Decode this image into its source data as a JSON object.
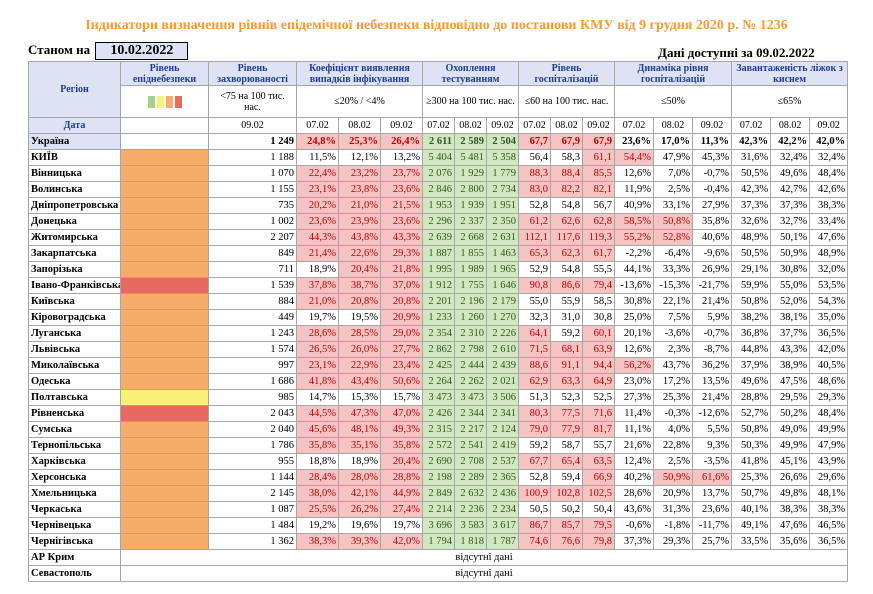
{
  "title": "Індикатори визначення рівнів епідемічної небезпеки відповідно до постанови КМУ від 9 грудня 2020 р. № 1236",
  "stanom_label": "Станом на",
  "stanom_date": "10.02.2022",
  "dani": "Дані доступні за 09.02.2022",
  "headers": {
    "region": "Регіон",
    "tsilovyi": "Цільовий показник",
    "data": "Дата",
    "riven_nebezpeky": "Рівень епіднебезпеки",
    "riven_zakhv": "Рівень захворюваності",
    "zakhv_target": "<75 на 100 тис. нас.",
    "koef": "Коефіцієнт виявлення випадків інфікування",
    "koef_target": "≤20% / <4%",
    "okhop": "Охоплення тестуванням",
    "okhop_target": "≥300 на 100 тис. нас.",
    "hosp": "Рівень госпіталізацій",
    "hosp_target": "≤60 на 100 тис. нас.",
    "dyn": "Динаміка рівня госпіталізацій",
    "dyn_target": "≤50%",
    "lizh": "Завантаженість ліжок з киснем",
    "lizh_target": "≤65%",
    "d0902": "09.02",
    "d0702": "07.02",
    "d0802": "08.02"
  },
  "legend_colors": [
    "#a8d08d",
    "#f8f276",
    "#f8ac6a",
    "#e8695f"
  ],
  "rows": [
    {
      "name": "Україна",
      "ind": "none",
      "z": "1 249",
      "k": [
        "24,8%",
        "25,3%",
        "26,4%"
      ],
      "kc": [
        "red",
        "red",
        "red"
      ],
      "o": [
        "2 611",
        "2 589",
        "2 504"
      ],
      "oc": [
        "green",
        "green",
        "green"
      ],
      "h": [
        "67,7",
        "67,9",
        "67,9"
      ],
      "hc": [
        "red",
        "red",
        "red"
      ],
      "d": [
        "23,6%",
        "17,0%",
        "11,3%"
      ],
      "dc": [
        "",
        "",
        ""
      ],
      "l": [
        "42,3%",
        "42,2%",
        "42,0%"
      ]
    },
    {
      "name": "КИЇВ",
      "ind": "orange",
      "z": "1 188",
      "k": [
        "11,5%",
        "12,1%",
        "13,2%"
      ],
      "kc": [
        "",
        "",
        ""
      ],
      "o": [
        "5 404",
        "5 481",
        "5 358"
      ],
      "oc": [
        "green",
        "green",
        "green"
      ],
      "h": [
        "56,4",
        "58,3",
        "61,1"
      ],
      "hc": [
        "",
        "",
        "red"
      ],
      "d": [
        "54,4%",
        "47,9%",
        "45,3%"
      ],
      "dc": [
        "red",
        "",
        ""
      ],
      "l": [
        "31,6%",
        "32,4%",
        "32,4%"
      ]
    },
    {
      "name": "Вінницька",
      "ind": "orange",
      "z": "1 070",
      "k": [
        "22,4%",
        "23,2%",
        "23,7%"
      ],
      "kc": [
        "red",
        "red",
        "red"
      ],
      "o": [
        "2 076",
        "1 929",
        "1 779"
      ],
      "oc": [
        "green",
        "green",
        "green"
      ],
      "h": [
        "88,3",
        "88,4",
        "85,5"
      ],
      "hc": [
        "red",
        "red",
        "red"
      ],
      "d": [
        "12,6%",
        "7,0%",
        "-0,7%"
      ],
      "dc": [
        "",
        "",
        ""
      ],
      "l": [
        "50,5%",
        "49,6%",
        "48,4%"
      ]
    },
    {
      "name": "Волинська",
      "ind": "orange",
      "z": "1 155",
      "k": [
        "23,1%",
        "23,8%",
        "23,6%"
      ],
      "kc": [
        "red",
        "red",
        "red"
      ],
      "o": [
        "2 846",
        "2 800",
        "2 734"
      ],
      "oc": [
        "green",
        "green",
        "green"
      ],
      "h": [
        "83,0",
        "82,2",
        "82,1"
      ],
      "hc": [
        "red",
        "red",
        "red"
      ],
      "d": [
        "11,9%",
        "2,5%",
        "-0,4%"
      ],
      "dc": [
        "",
        "",
        ""
      ],
      "l": [
        "42,3%",
        "42,7%",
        "42,6%"
      ]
    },
    {
      "name": "Дніпропетровська",
      "ind": "orange",
      "z": "735",
      "k": [
        "20,2%",
        "21,0%",
        "21,5%"
      ],
      "kc": [
        "red",
        "red",
        "red"
      ],
      "o": [
        "1 953",
        "1 939",
        "1 951"
      ],
      "oc": [
        "green",
        "green",
        "green"
      ],
      "h": [
        "52,8",
        "54,8",
        "56,7"
      ],
      "hc": [
        "",
        "",
        ""
      ],
      "d": [
        "40,9%",
        "33,1%",
        "27,9%"
      ],
      "dc": [
        "",
        "",
        ""
      ],
      "l": [
        "37,3%",
        "37,3%",
        "38,3%"
      ]
    },
    {
      "name": "Донецька",
      "ind": "orange",
      "z": "1 002",
      "k": [
        "23,6%",
        "23,9%",
        "23,6%"
      ],
      "kc": [
        "red",
        "red",
        "red"
      ],
      "o": [
        "2 296",
        "2 337",
        "2 350"
      ],
      "oc": [
        "green",
        "green",
        "green"
      ],
      "h": [
        "61,2",
        "62,6",
        "62,8"
      ],
      "hc": [
        "red",
        "red",
        "red"
      ],
      "d": [
        "58,5%",
        "50,8%",
        "35,8%"
      ],
      "dc": [
        "red",
        "red",
        ""
      ],
      "l": [
        "32,6%",
        "32,7%",
        "33,4%"
      ]
    },
    {
      "name": "Житомирська",
      "ind": "orange",
      "z": "2 207",
      "k": [
        "44,3%",
        "43,8%",
        "43,3%"
      ],
      "kc": [
        "red",
        "red",
        "red"
      ],
      "o": [
        "2 639",
        "2 668",
        "2 631"
      ],
      "oc": [
        "green",
        "green",
        "green"
      ],
      "h": [
        "112,1",
        "117,6",
        "119,3"
      ],
      "hc": [
        "red",
        "red",
        "red"
      ],
      "d": [
        "55,2%",
        "52,8%",
        "40,6%"
      ],
      "dc": [
        "red",
        "red",
        ""
      ],
      "l": [
        "48,9%",
        "50,1%",
        "47,6%"
      ]
    },
    {
      "name": "Закарпатська",
      "ind": "orange",
      "z": "849",
      "k": [
        "21,4%",
        "22,6%",
        "29,3%"
      ],
      "kc": [
        "red",
        "red",
        "red"
      ],
      "o": [
        "1 887",
        "1 855",
        "1 463"
      ],
      "oc": [
        "green",
        "green",
        "green"
      ],
      "h": [
        "65,3",
        "62,3",
        "61,7"
      ],
      "hc": [
        "red",
        "red",
        "red"
      ],
      "d": [
        "-2,2%",
        "-6,4%",
        "-9,6%"
      ],
      "dc": [
        "",
        "",
        ""
      ],
      "l": [
        "50,5%",
        "50,9%",
        "48,9%"
      ]
    },
    {
      "name": "Запорізька",
      "ind": "orange",
      "z": "711",
      "k": [
        "18,9%",
        "20,4%",
        "21,8%"
      ],
      "kc": [
        "",
        "red",
        "red"
      ],
      "o": [
        "1 995",
        "1 989",
        "1 965"
      ],
      "oc": [
        "green",
        "green",
        "green"
      ],
      "h": [
        "52,9",
        "54,8",
        "55,5"
      ],
      "hc": [
        "",
        "",
        ""
      ],
      "d": [
        "44,1%",
        "33,3%",
        "26,9%"
      ],
      "dc": [
        "",
        "",
        ""
      ],
      "l": [
        "29,1%",
        "30,8%",
        "32,0%"
      ]
    },
    {
      "name": "Івано-Франківська",
      "ind": "red",
      "z": "1 539",
      "k": [
        "37,8%",
        "38,7%",
        "37,0%"
      ],
      "kc": [
        "red",
        "red",
        "red"
      ],
      "o": [
        "1 912",
        "1 755",
        "1 646"
      ],
      "oc": [
        "green",
        "green",
        "green"
      ],
      "h": [
        "90,8",
        "86,6",
        "79,4"
      ],
      "hc": [
        "red",
        "red",
        "red"
      ],
      "d": [
        "-13,6%",
        "-15,3%",
        "-21,7%"
      ],
      "dc": [
        "",
        "",
        ""
      ],
      "l": [
        "59,9%",
        "55,0%",
        "53,5%"
      ]
    },
    {
      "name": "Київська",
      "ind": "orange",
      "z": "884",
      "k": [
        "21,0%",
        "20,8%",
        "20,8%"
      ],
      "kc": [
        "red",
        "red",
        "red"
      ],
      "o": [
        "2 201",
        "2 196",
        "2 179"
      ],
      "oc": [
        "green",
        "green",
        "green"
      ],
      "h": [
        "55,0",
        "55,9",
        "58,5"
      ],
      "hc": [
        "",
        "",
        ""
      ],
      "d": [
        "30,8%",
        "22,1%",
        "21,4%"
      ],
      "dc": [
        "",
        "",
        ""
      ],
      "l": [
        "50,8%",
        "52,0%",
        "54,3%"
      ]
    },
    {
      "name": "Кіровоградська",
      "ind": "orange",
      "z": "449",
      "k": [
        "19,7%",
        "19,5%",
        "20,9%"
      ],
      "kc": [
        "",
        "",
        "red"
      ],
      "o": [
        "1 233",
        "1 260",
        "1 270"
      ],
      "oc": [
        "green",
        "green",
        "green"
      ],
      "h": [
        "32,3",
        "31,0",
        "30,8"
      ],
      "hc": [
        "",
        "",
        ""
      ],
      "d": [
        "25,0%",
        "7,5%",
        "5,9%"
      ],
      "dc": [
        "",
        "",
        ""
      ],
      "l": [
        "38,2%",
        "38,1%",
        "35,0%"
      ]
    },
    {
      "name": "Луганська",
      "ind": "orange",
      "z": "1 243",
      "k": [
        "28,6%",
        "28,5%",
        "29,0%"
      ],
      "kc": [
        "red",
        "red",
        "red"
      ],
      "o": [
        "2 354",
        "2 310",
        "2 226"
      ],
      "oc": [
        "green",
        "green",
        "green"
      ],
      "h": [
        "64,1",
        "59,2",
        "60,1"
      ],
      "hc": [
        "red",
        "",
        "red"
      ],
      "d": [
        "20,1%",
        "-3,6%",
        "-0,7%"
      ],
      "dc": [
        "",
        "",
        ""
      ],
      "l": [
        "36,8%",
        "37,7%",
        "36,5%"
      ]
    },
    {
      "name": "Львівська",
      "ind": "orange",
      "z": "1 574",
      "k": [
        "26,5%",
        "26,0%",
        "27,7%"
      ],
      "kc": [
        "red",
        "red",
        "red"
      ],
      "o": [
        "2 862",
        "2 798",
        "2 610"
      ],
      "oc": [
        "green",
        "green",
        "green"
      ],
      "h": [
        "71,5",
        "68,1",
        "63,9"
      ],
      "hc": [
        "red",
        "red",
        "red"
      ],
      "d": [
        "12,6%",
        "2,3%",
        "-8,7%"
      ],
      "dc": [
        "",
        "",
        ""
      ],
      "l": [
        "44,8%",
        "43,3%",
        "42,0%"
      ]
    },
    {
      "name": "Миколаївська",
      "ind": "orange",
      "z": "997",
      "k": [
        "23,1%",
        "22,9%",
        "23,4%"
      ],
      "kc": [
        "red",
        "red",
        "red"
      ],
      "o": [
        "2 425",
        "2 444",
        "2 439"
      ],
      "oc": [
        "green",
        "green",
        "green"
      ],
      "h": [
        "88,6",
        "91,1",
        "94,4"
      ],
      "hc": [
        "red",
        "red",
        "red"
      ],
      "d": [
        "56,2%",
        "43,7%",
        "36,2%"
      ],
      "dc": [
        "red",
        "",
        ""
      ],
      "l": [
        "37,9%",
        "38,9%",
        "40,5%"
      ]
    },
    {
      "name": "Одеська",
      "ind": "orange",
      "z": "1 686",
      "k": [
        "41,8%",
        "43,4%",
        "50,6%"
      ],
      "kc": [
        "red",
        "red",
        "red"
      ],
      "o": [
        "2 264",
        "2 262",
        "2 021"
      ],
      "oc": [
        "green",
        "green",
        "green"
      ],
      "h": [
        "62,9",
        "63,3",
        "64,9"
      ],
      "hc": [
        "red",
        "red",
        "red"
      ],
      "d": [
        "23,0%",
        "17,2%",
        "13,5%"
      ],
      "dc": [
        "",
        "",
        ""
      ],
      "l": [
        "49,6%",
        "47,5%",
        "48,6%"
      ]
    },
    {
      "name": "Полтавська",
      "ind": "yellow",
      "z": "985",
      "k": [
        "14,7%",
        "15,3%",
        "15,7%"
      ],
      "kc": [
        "",
        "",
        ""
      ],
      "o": [
        "3 473",
        "3 473",
        "3 506"
      ],
      "oc": [
        "green",
        "green",
        "green"
      ],
      "h": [
        "51,3",
        "52,3",
        "52,5"
      ],
      "hc": [
        "",
        "",
        ""
      ],
      "d": [
        "27,3%",
        "25,3%",
        "21,4%"
      ],
      "dc": [
        "",
        "",
        ""
      ],
      "l": [
        "28,8%",
        "29,5%",
        "29,3%"
      ]
    },
    {
      "name": "Рівненська",
      "ind": "red",
      "z": "2 043",
      "k": [
        "44,5%",
        "47,3%",
        "47,0%"
      ],
      "kc": [
        "red",
        "red",
        "red"
      ],
      "o": [
        "2 426",
        "2 344",
        "2 341"
      ],
      "oc": [
        "green",
        "green",
        "green"
      ],
      "h": [
        "80,3",
        "77,5",
        "71,6"
      ],
      "hc": [
        "red",
        "red",
        "red"
      ],
      "d": [
        "11,4%",
        "-0,3%",
        "-12,6%"
      ],
      "dc": [
        "",
        "",
        ""
      ],
      "l": [
        "52,7%",
        "50,2%",
        "48,4%"
      ]
    },
    {
      "name": "Сумська",
      "ind": "orange",
      "z": "2 040",
      "k": [
        "45,6%",
        "48,1%",
        "49,3%"
      ],
      "kc": [
        "red",
        "red",
        "red"
      ],
      "o": [
        "2 315",
        "2 217",
        "2 124"
      ],
      "oc": [
        "green",
        "green",
        "green"
      ],
      "h": [
        "79,0",
        "77,9",
        "81,7"
      ],
      "hc": [
        "red",
        "red",
        "red"
      ],
      "d": [
        "11,1%",
        "4,0%",
        "5,5%"
      ],
      "dc": [
        "",
        "",
        ""
      ],
      "l": [
        "50,8%",
        "49,0%",
        "49,9%"
      ]
    },
    {
      "name": "Тернопільська",
      "ind": "orange",
      "z": "1 786",
      "k": [
        "35,8%",
        "35,1%",
        "35,8%"
      ],
      "kc": [
        "red",
        "red",
        "red"
      ],
      "o": [
        "2 572",
        "2 541",
        "2 419"
      ],
      "oc": [
        "green",
        "green",
        "green"
      ],
      "h": [
        "59,2",
        "58,7",
        "55,7"
      ],
      "hc": [
        "",
        "",
        ""
      ],
      "d": [
        "21,6%",
        "22,8%",
        "9,3%"
      ],
      "dc": [
        "",
        "",
        ""
      ],
      "l": [
        "50,3%",
        "49,9%",
        "47,9%"
      ]
    },
    {
      "name": "Харківська",
      "ind": "orange",
      "z": "955",
      "k": [
        "18,8%",
        "18,9%",
        "20,4%"
      ],
      "kc": [
        "",
        "",
        "red"
      ],
      "o": [
        "2 690",
        "2 708",
        "2 537"
      ],
      "oc": [
        "green",
        "green",
        "green"
      ],
      "h": [
        "67,7",
        "65,4",
        "63,5"
      ],
      "hc": [
        "red",
        "red",
        "red"
      ],
      "d": [
        "12,4%",
        "2,5%",
        "-3,5%"
      ],
      "dc": [
        "",
        "",
        ""
      ],
      "l": [
        "41,8%",
        "45,1%",
        "43,9%"
      ]
    },
    {
      "name": "Херсонська",
      "ind": "orange",
      "z": "1 144",
      "k": [
        "28,4%",
        "28,0%",
        "28,8%"
      ],
      "kc": [
        "red",
        "red",
        "red"
      ],
      "o": [
        "2 198",
        "2 289",
        "2 365"
      ],
      "oc": [
        "green",
        "green",
        "green"
      ],
      "h": [
        "52,8",
        "59,4",
        "66,9"
      ],
      "hc": [
        "",
        "",
        "red"
      ],
      "d": [
        "40,2%",
        "50,9%",
        "61,6%"
      ],
      "dc": [
        "",
        "red",
        "red"
      ],
      "l": [
        "25,3%",
        "26,6%",
        "29,6%"
      ]
    },
    {
      "name": "Хмельницька",
      "ind": "orange",
      "z": "2 145",
      "k": [
        "38,0%",
        "42,1%",
        "44,9%"
      ],
      "kc": [
        "red",
        "red",
        "red"
      ],
      "o": [
        "2 849",
        "2 632",
        "2 436"
      ],
      "oc": [
        "green",
        "green",
        "green"
      ],
      "h": [
        "100,9",
        "102,8",
        "102,5"
      ],
      "hc": [
        "red",
        "red",
        "red"
      ],
      "d": [
        "28,6%",
        "20,9%",
        "13,7%"
      ],
      "dc": [
        "",
        "",
        ""
      ],
      "l": [
        "50,7%",
        "49,8%",
        "48,1%"
      ]
    },
    {
      "name": "Черкаська",
      "ind": "orange",
      "z": "1 087",
      "k": [
        "25,5%",
        "26,2%",
        "27,4%"
      ],
      "kc": [
        "red",
        "red",
        "red"
      ],
      "o": [
        "2 214",
        "2 236",
        "2 234"
      ],
      "oc": [
        "green",
        "green",
        "green"
      ],
      "h": [
        "50,5",
        "50,2",
        "50,4"
      ],
      "hc": [
        "",
        "",
        ""
      ],
      "d": [
        "43,6%",
        "31,3%",
        "23,6%"
      ],
      "dc": [
        "",
        "",
        ""
      ],
      "l": [
        "40,1%",
        "38,3%",
        "38,3%"
      ]
    },
    {
      "name": "Чернівецька",
      "ind": "orange",
      "z": "1 484",
      "k": [
        "19,2%",
        "19,6%",
        "19,7%"
      ],
      "kc": [
        "",
        "",
        ""
      ],
      "o": [
        "3 696",
        "3 583",
        "3 617"
      ],
      "oc": [
        "green",
        "green",
        "green"
      ],
      "h": [
        "86,7",
        "85,7",
        "79,5"
      ],
      "hc": [
        "red",
        "red",
        "red"
      ],
      "d": [
        "-0,6%",
        "-1,8%",
        "-11,7%"
      ],
      "dc": [
        "",
        "",
        ""
      ],
      "l": [
        "49,1%",
        "47,6%",
        "46,5%"
      ]
    },
    {
      "name": "Чернігівська",
      "ind": "orange",
      "z": "1 362",
      "k": [
        "38,3%",
        "39,3%",
        "42,0%"
      ],
      "kc": [
        "red",
        "red",
        "red"
      ],
      "o": [
        "1 794",
        "1 818",
        "1 787"
      ],
      "oc": [
        "green",
        "green",
        "green"
      ],
      "h": [
        "74,6",
        "76,6",
        "79,8"
      ],
      "hc": [
        "red",
        "red",
        "red"
      ],
      "d": [
        "37,3%",
        "29,3%",
        "25,7%"
      ],
      "dc": [
        "",
        "",
        ""
      ],
      "l": [
        "33,5%",
        "35,6%",
        "36,5%"
      ]
    }
  ],
  "missing": [
    {
      "name": "АР Крим",
      "text": "відсутні дані"
    },
    {
      "name": "Севастополь",
      "text": "відсутні дані"
    }
  ]
}
